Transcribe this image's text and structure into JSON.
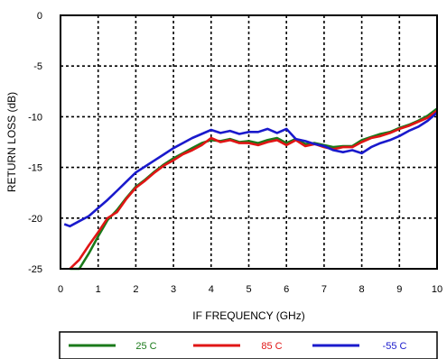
{
  "chart_data": {
    "type": "line",
    "title": "",
    "xlabel": "IF FREQUENCY (GHz)",
    "ylabel": "RETURN LOSS (dB)",
    "xlim": [
      0,
      10
    ],
    "ylim": [
      -25,
      0
    ],
    "xticks": [
      "0",
      "1",
      "2",
      "3",
      "4",
      "5",
      "6",
      "7",
      "8",
      "9",
      "10"
    ],
    "yticks": [
      "0",
      "-5",
      "-10",
      "-15",
      "-20",
      "-25"
    ],
    "grid": true,
    "legend_position": "bottom",
    "series": [
      {
        "name": "25 C",
        "color": "#1a7a1a",
        "x": [
          0.25,
          0.5,
          0.75,
          1.0,
          1.25,
          1.5,
          1.75,
          2.0,
          2.25,
          2.5,
          2.75,
          3.0,
          3.25,
          3.5,
          3.75,
          4.0,
          4.25,
          4.5,
          4.75,
          5.0,
          5.25,
          5.5,
          5.75,
          6.0,
          6.25,
          6.5,
          6.75,
          7.0,
          7.25,
          7.5,
          7.75,
          8.0,
          8.25,
          8.5,
          8.75,
          9.0,
          9.25,
          9.5,
          9.75,
          10.0
        ],
        "y": [
          -25.5,
          -25.0,
          -23.5,
          -21.8,
          -20.2,
          -19.2,
          -18.0,
          -16.9,
          -16.2,
          -15.4,
          -14.7,
          -14.1,
          -13.6,
          -13.1,
          -12.6,
          -12.3,
          -12.4,
          -12.2,
          -12.5,
          -12.4,
          -12.6,
          -12.3,
          -12.1,
          -12.6,
          -12.2,
          -12.7,
          -12.6,
          -12.8,
          -13.0,
          -12.9,
          -12.9,
          -12.3,
          -12.0,
          -11.7,
          -11.5,
          -11.1,
          -10.8,
          -10.4,
          -9.9,
          -9.2
        ]
      },
      {
        "name": "85 C",
        "color": "#e01515",
        "x": [
          0.25,
          0.5,
          0.75,
          1.0,
          1.25,
          1.5,
          1.75,
          2.0,
          2.25,
          2.5,
          2.75,
          3.0,
          3.25,
          3.5,
          3.75,
          4.0,
          4.25,
          4.5,
          4.75,
          5.0,
          5.25,
          5.5,
          5.75,
          6.0,
          6.25,
          6.5,
          6.75,
          7.0,
          7.25,
          7.5,
          7.75,
          8.0,
          8.25,
          8.5,
          8.75,
          9.0,
          9.25,
          9.5,
          9.75,
          10.0
        ],
        "y": [
          -25.0,
          -24.1,
          -22.7,
          -21.4,
          -20.0,
          -19.4,
          -18.1,
          -17.0,
          -16.3,
          -15.5,
          -14.8,
          -14.3,
          -13.7,
          -13.3,
          -12.8,
          -12.1,
          -12.5,
          -12.3,
          -12.6,
          -12.6,
          -12.8,
          -12.5,
          -12.3,
          -12.8,
          -12.3,
          -12.9,
          -12.7,
          -13.0,
          -13.2,
          -13.0,
          -13.0,
          -12.5,
          -12.1,
          -11.9,
          -11.6,
          -11.2,
          -10.9,
          -10.5,
          -10.1,
          -9.4
        ]
      },
      {
        "name": "-55 C",
        "color": "#1a1acc",
        "x": [
          0.1,
          0.25,
          0.5,
          0.75,
          1.0,
          1.25,
          1.5,
          1.75,
          2.0,
          2.25,
          2.5,
          2.75,
          3.0,
          3.25,
          3.5,
          3.75,
          4.0,
          4.25,
          4.5,
          4.75,
          5.0,
          5.25,
          5.5,
          5.75,
          6.0,
          6.25,
          6.5,
          6.75,
          7.0,
          7.25,
          7.5,
          7.75,
          8.0,
          8.25,
          8.5,
          8.75,
          9.0,
          9.25,
          9.5,
          9.75,
          10.0
        ],
        "y": [
          -20.6,
          -20.8,
          -20.3,
          -19.8,
          -19.0,
          -18.2,
          -17.3,
          -16.4,
          -15.5,
          -14.9,
          -14.3,
          -13.7,
          -13.1,
          -12.6,
          -12.1,
          -11.7,
          -11.3,
          -11.6,
          -11.4,
          -11.7,
          -11.5,
          -11.5,
          -11.2,
          -11.6,
          -11.2,
          -12.2,
          -12.4,
          -12.7,
          -12.9,
          -13.3,
          -13.5,
          -13.3,
          -13.6,
          -13.0,
          -12.6,
          -12.3,
          -11.9,
          -11.4,
          -11.0,
          -10.4,
          -9.6
        ]
      }
    ]
  }
}
